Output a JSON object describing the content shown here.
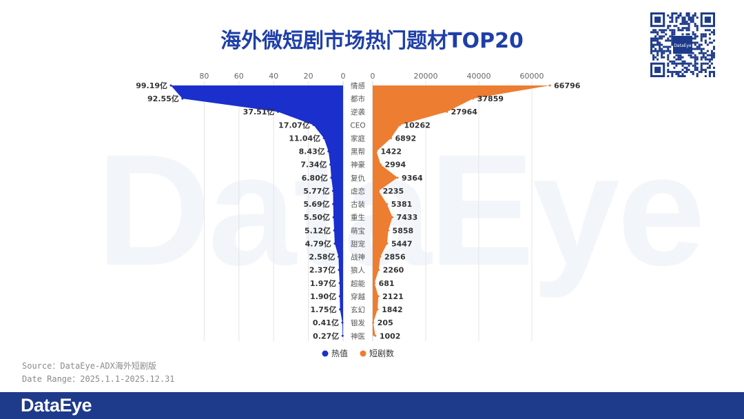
{
  "title": "海外微短剧市场热门题材TOP20",
  "watermark": "DataEye",
  "qr_label": "DataEye",
  "source": "Source：DataEye-ADX海外短剧版",
  "date_range": "Date Range：2025.1.1-2025.12.31",
  "footer_brand": "DataEye",
  "colors": {
    "heat": "#1b2fcc",
    "count": "#ed7d31",
    "title": "#1f3fa8",
    "footer": "#1e3a8a"
  },
  "chart_data": {
    "type": "bar",
    "categories": [
      "情感",
      "都市",
      "逆袭",
      "CEO",
      "家庭",
      "黑帮",
      "神豪",
      "复仇",
      "虐恋",
      "古装",
      "重生",
      "萌宝",
      "甜宠",
      "战神",
      "狼人",
      "超能",
      "穿越",
      "玄幻",
      "银发",
      "神医"
    ],
    "series": [
      {
        "name": "热值",
        "unit": "亿",
        "values": [
          99.19,
          92.55,
          37.51,
          17.07,
          11.04,
          8.43,
          7.34,
          6.8,
          5.77,
          5.69,
          5.5,
          5.12,
          4.79,
          2.58,
          2.37,
          1.97,
          1.9,
          1.75,
          0.41,
          0.27
        ],
        "labels": [
          "99.19亿",
          "92.55亿",
          "37.51亿",
          "17.07亿",
          "11.04亿",
          "8.43亿",
          "7.34亿",
          "6.80亿",
          "5.77亿",
          "5.69亿",
          "5.50亿",
          "5.12亿",
          "4.79亿",
          "2.58亿",
          "2.37亿",
          "1.97亿",
          "1.90亿",
          "1.75亿",
          "0.41亿",
          "0.27亿"
        ],
        "axis_ticks": [
          80,
          60,
          40,
          20,
          0
        ],
        "axis_range": [
          0,
          100
        ]
      },
      {
        "name": "短剧数",
        "values": [
          66796,
          37859,
          27964,
          10262,
          6892,
          1422,
          2994,
          9364,
          2235,
          5381,
          7433,
          5858,
          5447,
          2856,
          2260,
          681,
          2121,
          1842,
          205,
          1002
        ],
        "labels": [
          "66796",
          "37859",
          "27964",
          "10262",
          "6892",
          "1422",
          "2994",
          "9364",
          "2235",
          "5381",
          "7433",
          "5858",
          "5447",
          "2856",
          "2260",
          "681",
          "2121",
          "1842",
          "205",
          "1002"
        ],
        "axis_ticks": [
          0,
          20000,
          40000,
          60000
        ],
        "axis_range": [
          0,
          70000
        ]
      }
    ],
    "legend": [
      "热值",
      "短剧数"
    ],
    "legend_position": "bottom-center"
  }
}
